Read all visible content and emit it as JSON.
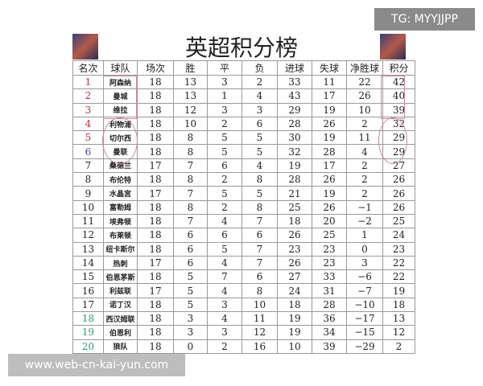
{
  "title": "英超积分榜",
  "headers": [
    "名次",
    "球队",
    "场次",
    "胜",
    "平",
    "负",
    "进球",
    "失球",
    "净胜球",
    "积分"
  ],
  "rows": [
    [
      "1",
      "阿森纳",
      "18",
      "13",
      "3",
      "2",
      "33",
      "11",
      "22",
      "42"
    ],
    [
      "2",
      "曼城",
      "18",
      "13",
      "1",
      "4",
      "43",
      "17",
      "26",
      "40"
    ],
    [
      "3",
      "维拉",
      "18",
      "12",
      "3",
      "3",
      "29",
      "19",
      "10",
      "39"
    ],
    [
      "4",
      "利物浦",
      "18",
      "10",
      "2",
      "6",
      "28",
      "26",
      "2",
      "32"
    ],
    [
      "5",
      "切尔西",
      "18",
      "8",
      "5",
      "5",
      "30",
      "19",
      "11",
      "29"
    ],
    [
      "6",
      "曼联",
      "18",
      "8",
      "5",
      "5",
      "32",
      "28",
      "4",
      "29"
    ],
    [
      "7",
      "桑德兰",
      "17",
      "7",
      "6",
      "4",
      "19",
      "17",
      "2",
      "27"
    ],
    [
      "8",
      "布伦特",
      "18",
      "8",
      "2",
      "8",
      "28",
      "26",
      "2",
      "26"
    ],
    [
      "9",
      "水晶宫",
      "17",
      "7",
      "5",
      "5",
      "21",
      "19",
      "2",
      "26"
    ],
    [
      "10",
      "富勒姆",
      "18",
      "8",
      "2",
      "8",
      "25",
      "26",
      "−1",
      "26"
    ],
    [
      "11",
      "埃弗顿",
      "18",
      "7",
      "4",
      "7",
      "18",
      "20",
      "−2",
      "25"
    ],
    [
      "12",
      "布莱顿",
      "18",
      "6",
      "6",
      "6",
      "26",
      "25",
      "1",
      "24"
    ],
    [
      "13",
      "纽卡斯尔",
      "18",
      "6",
      "5",
      "7",
      "23",
      "23",
      "0",
      "23"
    ],
    [
      "14",
      "热刺",
      "17",
      "6",
      "4",
      "7",
      "26",
      "23",
      "3",
      "22"
    ],
    [
      "15",
      "伯恩茅斯",
      "18",
      "5",
      "7",
      "6",
      "27",
      "33",
      "−6",
      "22"
    ],
    [
      "16",
      "利兹联",
      "17",
      "5",
      "4",
      "8",
      "24",
      "31",
      "−7",
      "19"
    ],
    [
      "17",
      "诺丁汉",
      "18",
      "5",
      "3",
      "10",
      "18",
      "28",
      "−10",
      "18"
    ],
    [
      "18",
      "西汉姆联",
      "18",
      "3",
      "4",
      "11",
      "19",
      "36",
      "−17",
      "13"
    ],
    [
      "19",
      "伯恩利",
      "18",
      "3",
      "3",
      "12",
      "19",
      "34",
      "−15",
      "12"
    ],
    [
      "20",
      "狼队",
      "18",
      "0",
      "2",
      "16",
      "10",
      "39",
      "−29",
      "2"
    ]
  ],
  "rank_colors": {
    "top": "#c03040",
    "sixth": "#5a3a80",
    "relegation": "#2a9a6a"
  },
  "overlay_tg": "TG: MYYJJPP",
  "overlay_url": "www.web-cn-kai-yun.com"
}
